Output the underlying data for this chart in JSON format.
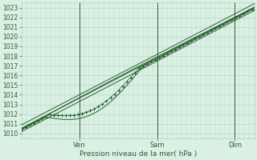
{
  "xlabel": "Pression niveau de la mer( hPa )",
  "ylim": [
    1009.5,
    1023.5
  ],
  "xlim": [
    0,
    288
  ],
  "yticks": [
    1010,
    1011,
    1012,
    1013,
    1014,
    1015,
    1016,
    1017,
    1018,
    1019,
    1020,
    1021,
    1022,
    1023
  ],
  "xtick_positions": [
    72,
    168,
    264
  ],
  "xtick_labels": [
    "Ven",
    "Sam",
    "Dim"
  ],
  "bg_color": "#daf0e4",
  "grid_color": "#b0d4bc",
  "line_color": "#2a6032",
  "n_points": 289
}
